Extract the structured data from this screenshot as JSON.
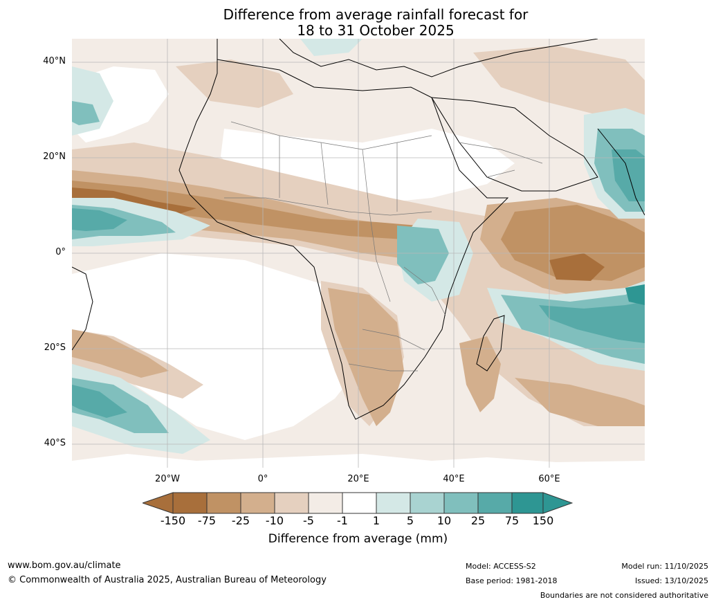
{
  "title": {
    "line1": "Difference from average rainfall forecast for",
    "line2": "18 to 31 October 2025"
  },
  "map": {
    "region": "Africa",
    "lat_labels": [
      "40°N",
      "20°N",
      "0°",
      "20°S",
      "40°S"
    ],
    "lon_labels": [
      "20°W",
      "0°",
      "20°E",
      "40°E",
      "60°E"
    ]
  },
  "colorbar": {
    "ticks": [
      "-150",
      "-75",
      "-25",
      "-10",
      "-5",
      "-1",
      "1",
      "5",
      "10",
      "25",
      "75",
      "150"
    ],
    "colors": [
      "#a86f3b",
      "#a86f3b",
      "#c09264",
      "#d3af8d",
      "#e5d0bf",
      "#f3ece6",
      "#ffffff",
      "#d4e8e6",
      "#a9d3d1",
      "#80bfbd",
      "#57aaa8",
      "#2e9693",
      "#2e9693"
    ],
    "label": "Difference from average (mm)"
  },
  "footer": {
    "url": "www.bom.gov.au/climate",
    "copyright": "© Commonwealth of Australia 2025, Australian Bureau of Meteorology",
    "model": "Model: ACCESS-S2",
    "base_period": "Base period: 1981-2018",
    "model_run": "Model run: 11/10/2025",
    "issued": "Issued: 13/10/2025",
    "disclaimer": "Boundaries are not considered authoritative"
  }
}
